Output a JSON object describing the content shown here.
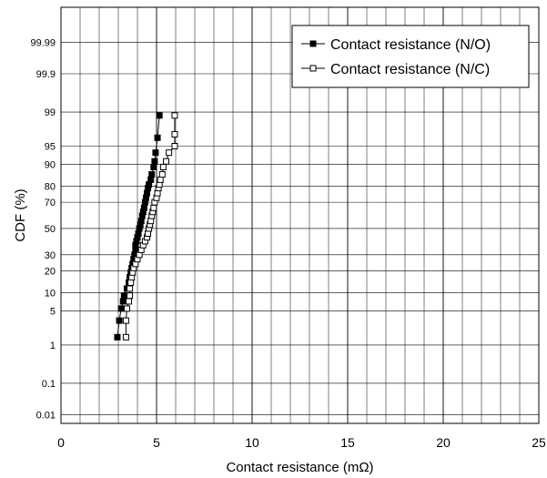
{
  "chart_data": {
    "type": "line",
    "xlabel": "Contact resistance  (mΩ)",
    "ylabel": "CDF (%)",
    "xlim": [
      0,
      25
    ],
    "x_ticks": [
      "0",
      "5",
      "10",
      "15",
      "20",
      "25"
    ],
    "y_scale": "probability (normal)",
    "y_ticks": [
      "0.01",
      "0.1",
      "1",
      "5",
      "10",
      "20",
      "30",
      "50",
      "70",
      "80",
      "90",
      "95",
      "99",
      "99.9",
      "99.99"
    ],
    "y_tick_values": [
      0.01,
      0.1,
      1,
      5,
      10,
      20,
      30,
      50,
      70,
      80,
      90,
      95,
      99,
      99.9,
      99.99
    ],
    "grid": true,
    "legend_position": "top-right",
    "series": [
      {
        "name": "Contact resistance (N/O)",
        "marker": "filled-square",
        "color": "#000000",
        "points": [
          [
            2.95,
            1.5
          ],
          [
            3.05,
            3.3
          ],
          [
            3.15,
            5.5
          ],
          [
            3.25,
            7.3
          ],
          [
            3.3,
            9.0
          ],
          [
            3.45,
            11.5
          ],
          [
            3.55,
            14.0
          ],
          [
            3.6,
            16.5
          ],
          [
            3.65,
            19.0
          ],
          [
            3.7,
            21.5
          ],
          [
            3.75,
            24.0
          ],
          [
            3.8,
            27.0
          ],
          [
            3.85,
            30.0
          ],
          [
            3.9,
            33.5
          ],
          [
            3.9,
            37.0
          ],
          [
            3.95,
            40.0
          ],
          [
            4.0,
            43.0
          ],
          [
            4.05,
            46.0
          ],
          [
            4.1,
            50.0
          ],
          [
            4.15,
            53.0
          ],
          [
            4.2,
            56.0
          ],
          [
            4.25,
            60.0
          ],
          [
            4.3,
            63.0
          ],
          [
            4.35,
            66.0
          ],
          [
            4.4,
            70.0
          ],
          [
            4.45,
            73.0
          ],
          [
            4.5,
            76.0
          ],
          [
            4.55,
            79.0
          ],
          [
            4.6,
            81.0
          ],
          [
            4.7,
            83.5
          ],
          [
            4.75,
            86.0
          ],
          [
            4.85,
            89.0
          ],
          [
            4.9,
            91.0
          ],
          [
            4.95,
            93.5
          ],
          [
            5.05,
            96.5
          ],
          [
            5.15,
            98.8
          ]
        ]
      },
      {
        "name": "Contact resistance (N/C)",
        "marker": "open-square",
        "color": "#000000",
        "points": [
          [
            3.4,
            1.5
          ],
          [
            3.4,
            3.3
          ],
          [
            3.45,
            5.5
          ],
          [
            3.55,
            7.3
          ],
          [
            3.6,
            9.0
          ],
          [
            3.6,
            11.5
          ],
          [
            3.65,
            14.0
          ],
          [
            3.7,
            16.5
          ],
          [
            3.75,
            19.0
          ],
          [
            3.8,
            21.5
          ],
          [
            3.9,
            24.0
          ],
          [
            4.0,
            27.0
          ],
          [
            4.1,
            30.0
          ],
          [
            4.2,
            33.5
          ],
          [
            4.3,
            37.0
          ],
          [
            4.4,
            40.0
          ],
          [
            4.5,
            43.0
          ],
          [
            4.55,
            46.0
          ],
          [
            4.6,
            50.0
          ],
          [
            4.65,
            53.0
          ],
          [
            4.7,
            56.0
          ],
          [
            4.75,
            60.0
          ],
          [
            4.8,
            63.0
          ],
          [
            4.85,
            66.0
          ],
          [
            4.9,
            70.0
          ],
          [
            5.0,
            73.0
          ],
          [
            5.05,
            76.0
          ],
          [
            5.1,
            79.0
          ],
          [
            5.15,
            81.0
          ],
          [
            5.2,
            83.5
          ],
          [
            5.3,
            86.0
          ],
          [
            5.35,
            89.0
          ],
          [
            5.5,
            91.0
          ],
          [
            5.65,
            93.5
          ],
          [
            5.95,
            95.0
          ],
          [
            5.95,
            97.0
          ],
          [
            5.95,
            98.8
          ]
        ]
      }
    ]
  }
}
